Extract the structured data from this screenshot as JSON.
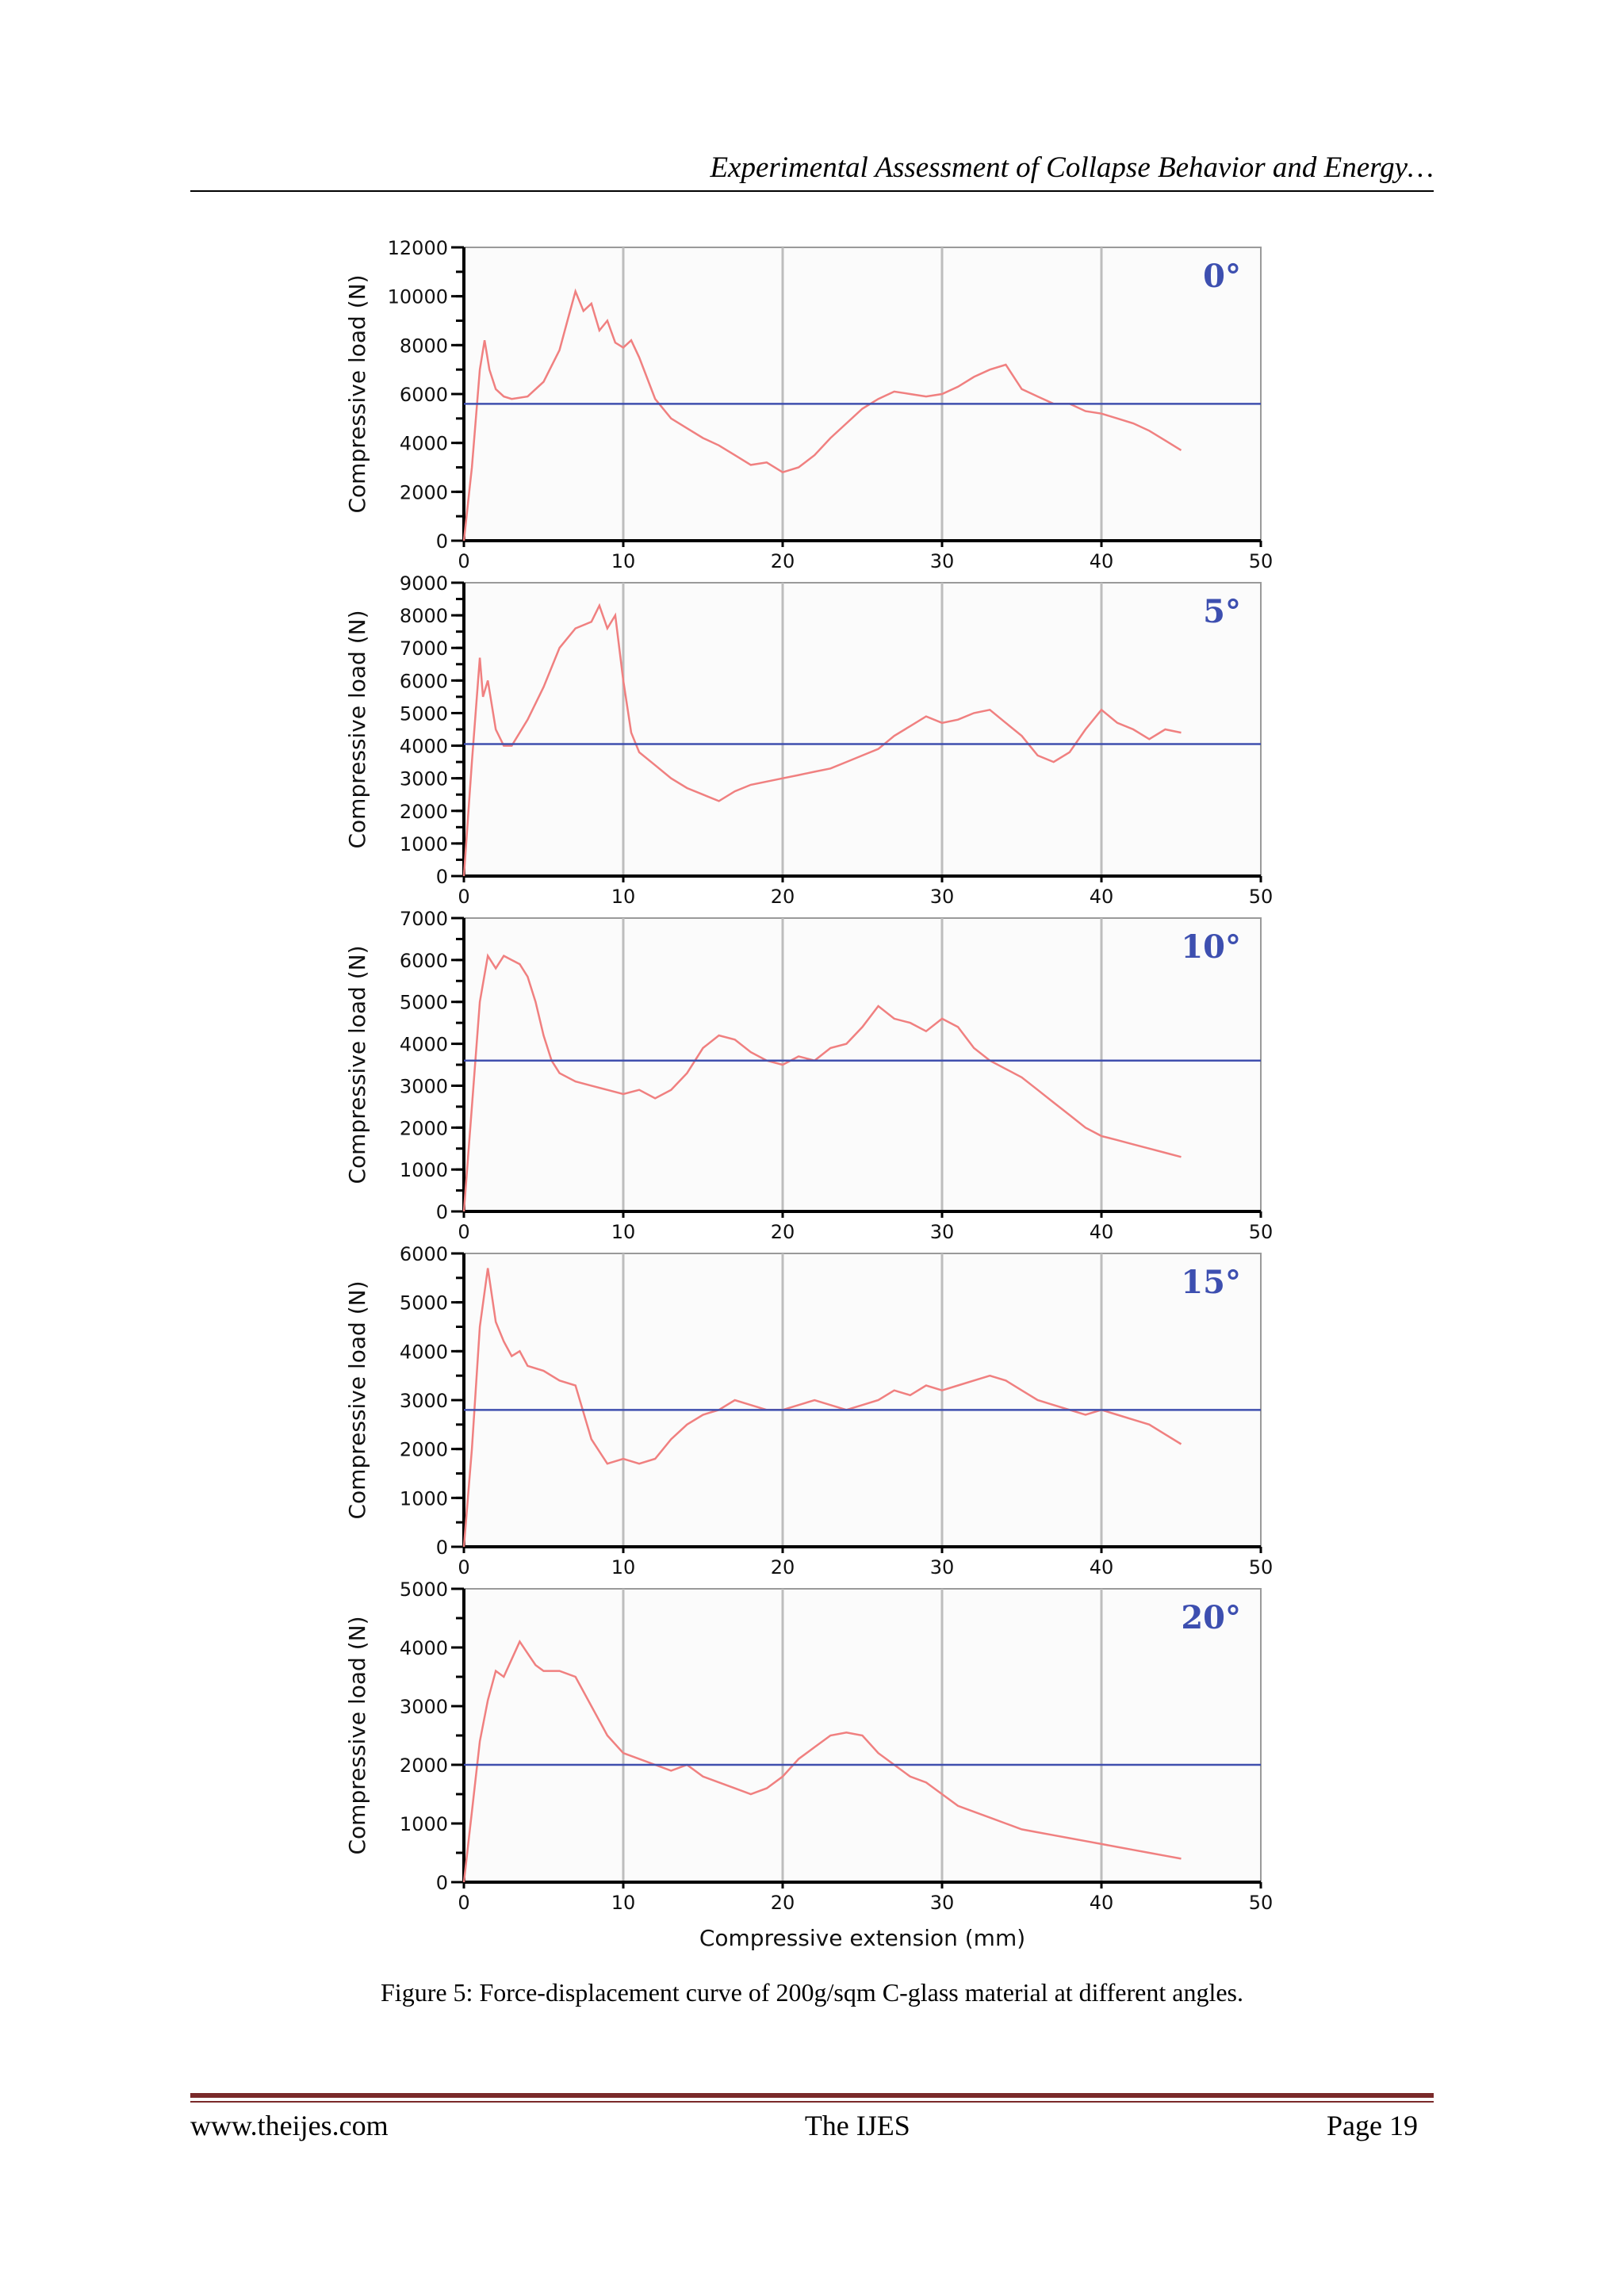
{
  "header": {
    "title": "Experimental Assessment of Collapse Behavior and Energy…"
  },
  "figure": {
    "caption": "Figure 5: Force-displacement curve of 200g/sqm C-glass material at different angles.",
    "xlabel": "Compressive extension (mm)"
  },
  "chart_data": [
    {
      "type": "line",
      "angle_label": "0°",
      "xlim": [
        0,
        50
      ],
      "ylim": [
        0,
        12000
      ],
      "ylabel": "Compressive load (N)",
      "xticks": [
        0,
        10,
        20,
        30,
        40,
        50
      ],
      "yticks": [
        0,
        2000,
        4000,
        6000,
        8000,
        10000,
        12000
      ],
      "mean_line": 5600,
      "series": [
        {
          "x": [
            0,
            0.5,
            1,
            1.3,
            1.6,
            2,
            2.5,
            3,
            4,
            5,
            6,
            6.5,
            7,
            7.5,
            8,
            8.5,
            9,
            9.5,
            10,
            10.5,
            11,
            12,
            13,
            14,
            15,
            16,
            17,
            18,
            19,
            20,
            21,
            22,
            23,
            24,
            25,
            26,
            27,
            28,
            29,
            30,
            31,
            32,
            33,
            34,
            35,
            36,
            37,
            38,
            39,
            40,
            41,
            42,
            43,
            44,
            45
          ],
          "y": [
            0,
            3000,
            7000,
            8200,
            7000,
            6200,
            5900,
            5800,
            5900,
            6500,
            7800,
            9000,
            10200,
            9400,
            9700,
            8600,
            9000,
            8100,
            7900,
            8200,
            7500,
            5800,
            5000,
            4600,
            4200,
            3900,
            3500,
            3100,
            3200,
            2800,
            3000,
            3500,
            4200,
            4800,
            5400,
            5800,
            6100,
            6000,
            5900,
            6000,
            6300,
            6700,
            7000,
            7200,
            6200,
            5900,
            5600,
            5600,
            5300,
            5200,
            5000,
            4800,
            4500,
            4100,
            3700
          ]
        }
      ]
    },
    {
      "type": "line",
      "angle_label": "5°",
      "xlim": [
        0,
        50
      ],
      "ylim": [
        0,
        9000
      ],
      "ylabel": "Compressive load (N)",
      "xticks": [
        0,
        10,
        20,
        30,
        40,
        50
      ],
      "yticks": [
        0,
        1000,
        2000,
        3000,
        4000,
        5000,
        6000,
        7000,
        8000,
        9000
      ],
      "mean_line": 4050,
      "series": [
        {
          "x": [
            0,
            0.5,
            1,
            1.2,
            1.5,
            2,
            2.5,
            3,
            4,
            5,
            6,
            7,
            8,
            8.5,
            9,
            9.5,
            10,
            10.5,
            11,
            12,
            13,
            14,
            15,
            16,
            17,
            18,
            19,
            20,
            21,
            22,
            23,
            24,
            25,
            26,
            27,
            28,
            29,
            30,
            31,
            32,
            33,
            34,
            35,
            36,
            37,
            38,
            39,
            40,
            41,
            42,
            43,
            44,
            45
          ],
          "y": [
            0,
            3500,
            6700,
            5500,
            6000,
            4500,
            4000,
            4000,
            4800,
            5800,
            7000,
            7600,
            7800,
            8300,
            7600,
            8000,
            6000,
            4400,
            3800,
            3400,
            3000,
            2700,
            2500,
            2300,
            2600,
            2800,
            2900,
            3000,
            3100,
            3200,
            3300,
            3500,
            3700,
            3900,
            4300,
            4600,
            4900,
            4700,
            4800,
            5000,
            5100,
            4700,
            4300,
            3700,
            3500,
            3800,
            4500,
            5100,
            4700,
            4500,
            4200,
            4500,
            4400
          ]
        }
      ]
    },
    {
      "type": "line",
      "angle_label": "10°",
      "xlim": [
        0,
        50
      ],
      "ylim": [
        0,
        7000
      ],
      "ylabel": "Compressive load (N)",
      "xticks": [
        0,
        10,
        20,
        30,
        40,
        50
      ],
      "yticks": [
        0,
        1000,
        2000,
        3000,
        4000,
        5000,
        6000,
        7000
      ],
      "mean_line": 3600,
      "series": [
        {
          "x": [
            0,
            0.5,
            1,
            1.5,
            2,
            2.5,
            3,
            3.5,
            4,
            4.5,
            5,
            5.5,
            6,
            7,
            8,
            9,
            10,
            11,
            12,
            13,
            14,
            15,
            16,
            17,
            18,
            19,
            20,
            21,
            22,
            23,
            24,
            25,
            26,
            27,
            28,
            29,
            30,
            31,
            32,
            33,
            34,
            35,
            36,
            37,
            38,
            39,
            40,
            41,
            42,
            43,
            44,
            45
          ],
          "y": [
            0,
            2500,
            5000,
            6100,
            5800,
            6100,
            6000,
            5900,
            5600,
            5000,
            4200,
            3600,
            3300,
            3100,
            3000,
            2900,
            2800,
            2900,
            2700,
            2900,
            3300,
            3900,
            4200,
            4100,
            3800,
            3600,
            3500,
            3700,
            3600,
            3900,
            4000,
            4400,
            4900,
            4600,
            4500,
            4300,
            4600,
            4400,
            3900,
            3600,
            3400,
            3200,
            2900,
            2600,
            2300,
            2000,
            1800,
            1700,
            1600,
            1500,
            1400,
            1300
          ]
        }
      ]
    },
    {
      "type": "line",
      "angle_label": "15°",
      "xlim": [
        0,
        50
      ],
      "ylim": [
        0,
        6000
      ],
      "ylabel": "Compressive load (N)",
      "xticks": [
        0,
        10,
        20,
        30,
        40,
        50
      ],
      "yticks": [
        0,
        1000,
        2000,
        3000,
        4000,
        5000,
        6000
      ],
      "mean_line": 2800,
      "series": [
        {
          "x": [
            0,
            0.5,
            1,
            1.5,
            2,
            2.5,
            3,
            3.5,
            4,
            5,
            6,
            7,
            8,
            9,
            10,
            11,
            12,
            13,
            14,
            15,
            16,
            17,
            18,
            19,
            20,
            21,
            22,
            23,
            24,
            25,
            26,
            27,
            28,
            29,
            30,
            31,
            32,
            33,
            34,
            35,
            36,
            37,
            38,
            39,
            40,
            41,
            42,
            43,
            44,
            45
          ],
          "y": [
            0,
            2000,
            4500,
            5700,
            4600,
            4200,
            3900,
            4000,
            3700,
            3600,
            3400,
            3300,
            2200,
            1700,
            1800,
            1700,
            1800,
            2200,
            2500,
            2700,
            2800,
            3000,
            2900,
            2800,
            2800,
            2900,
            3000,
            2900,
            2800,
            2900,
            3000,
            3200,
            3100,
            3300,
            3200,
            3300,
            3400,
            3500,
            3400,
            3200,
            3000,
            2900,
            2800,
            2700,
            2800,
            2700,
            2600,
            2500,
            2300,
            2100
          ]
        }
      ]
    },
    {
      "type": "line",
      "angle_label": "20°",
      "xlim": [
        0,
        50
      ],
      "ylim": [
        0,
        5000
      ],
      "ylabel": "Compressive load (N)",
      "xticks": [
        0,
        10,
        20,
        30,
        40,
        50
      ],
      "yticks": [
        0,
        1000,
        2000,
        3000,
        4000,
        5000
      ],
      "mean_line": 2000,
      "series": [
        {
          "x": [
            0,
            0.5,
            1,
            1.5,
            2,
            2.5,
            3,
            3.5,
            4,
            4.5,
            5,
            6,
            7,
            8,
            9,
            10,
            11,
            12,
            13,
            14,
            15,
            16,
            17,
            18,
            19,
            20,
            21,
            22,
            23,
            24,
            25,
            26,
            27,
            28,
            29,
            30,
            31,
            32,
            33,
            34,
            35,
            36,
            37,
            38,
            39,
            40,
            41,
            42,
            43,
            44,
            45
          ],
          "y": [
            0,
            1200,
            2400,
            3100,
            3600,
            3500,
            3800,
            4100,
            3900,
            3700,
            3600,
            3600,
            3500,
            3000,
            2500,
            2200,
            2100,
            2000,
            1900,
            2000,
            1800,
            1700,
            1600,
            1500,
            1600,
            1800,
            2100,
            2300,
            2500,
            2550,
            2500,
            2200,
            2000,
            1800,
            1700,
            1500,
            1300,
            1200,
            1100,
            1000,
            900,
            850,
            800,
            750,
            700,
            650,
            600,
            550,
            500,
            450,
            400
          ]
        }
      ]
    }
  ],
  "footer": {
    "website": "www.theijes.com",
    "journal": "The IJES",
    "page": "Page 19"
  },
  "colors": {
    "curve": "#f08080",
    "mean_line": "#3f4fae",
    "angle_label": "#3d4fb0",
    "grid": "#bdbdbd",
    "footer_rule": "#7a2a2a"
  }
}
